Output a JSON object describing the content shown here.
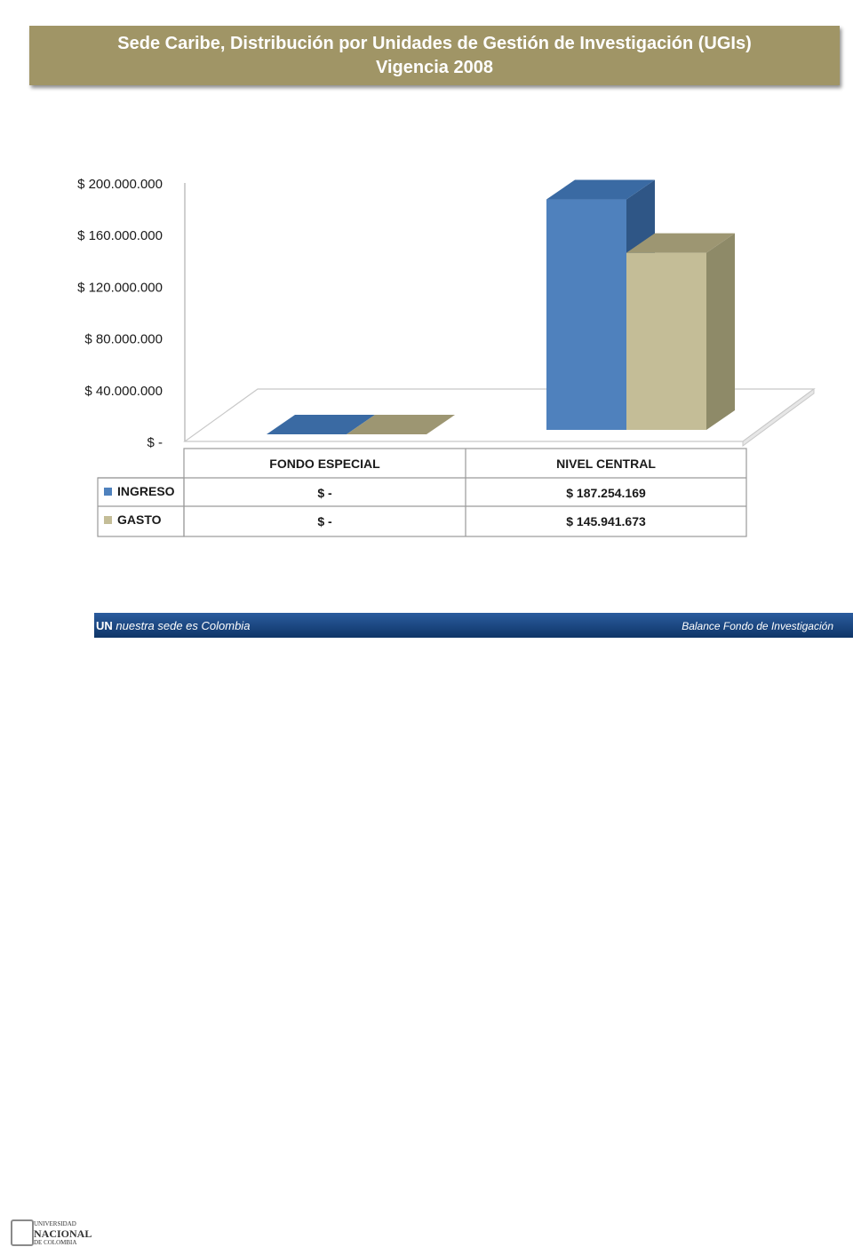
{
  "title": {
    "line1": "Sede Caribe, Distribución por Unidades de Gestión de Investigación (UGIs)",
    "line2": "Vigencia 2008"
  },
  "chart_data": {
    "type": "bar",
    "style": "3d-clustered-column with data table",
    "categories": [
      "FONDO ESPECIAL",
      "NIVEL CENTRAL"
    ],
    "series": [
      {
        "name": "INGRESO",
        "values": [
          0,
          187254169
        ],
        "labels": [
          "$ -",
          "$ 187.254.169"
        ],
        "color": "#4f81bd",
        "side_color": "#2f5686",
        "top_color": "#3a6aa3"
      },
      {
        "name": "GASTO",
        "values": [
          0,
          145941673
        ],
        "labels": [
          "$ -",
          "$ 145.941.673"
        ],
        "color": "#c4bd97",
        "side_color": "#8e8a68",
        "top_color": "#9d9672"
      }
    ],
    "ylim": [
      0,
      200000000
    ],
    "yticks": [
      0,
      40000000,
      80000000,
      120000000,
      160000000,
      200000000
    ],
    "ytick_labels": [
      "$ -",
      "$ 40.000.000",
      "$ 80.000.000",
      "$ 120.000.000",
      "$ 160.000.000",
      "$ 200.000.000"
    ],
    "legend": "in data table",
    "grid": false
  },
  "footer": {
    "left_bold": "UN",
    "left_text": " nuestra sede es Colombia",
    "right_text": "Balance Fondo de Investigación",
    "logo_lines": [
      "UNIVERSIDAD",
      "NACIONAL",
      "DE COLOMBIA"
    ]
  }
}
